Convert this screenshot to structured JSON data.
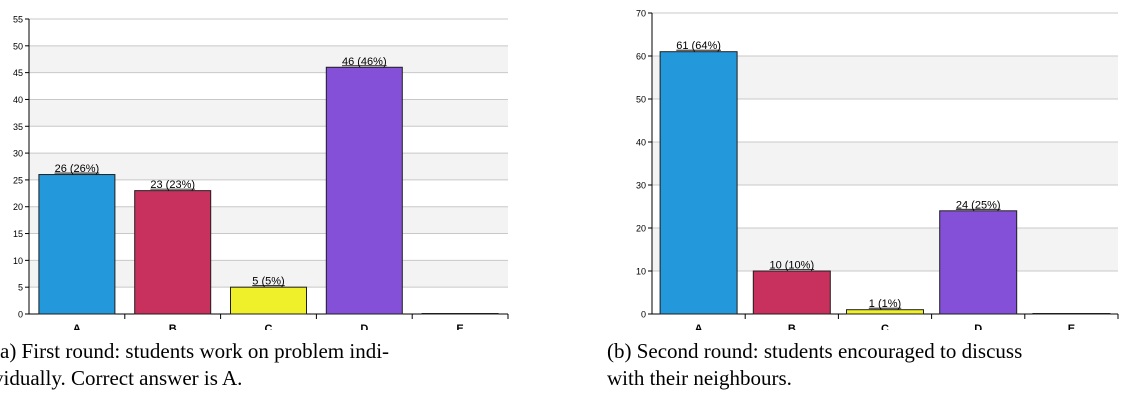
{
  "colors": {
    "A": "#2398da",
    "B": "#c8305e",
    "C": "#efef2a",
    "D": "#8450d8",
    "E": "#b0b0b0",
    "band": "#f3f3f3",
    "grid": "#c8c8c8"
  },
  "chart_data": [
    {
      "type": "bar",
      "title": "",
      "xlabel": "",
      "ylabel": "",
      "categories": [
        "A",
        "B",
        "C",
        "D",
        "E"
      ],
      "values": [
        26,
        23,
        5,
        46,
        0
      ],
      "data_labels": [
        "26 (26%)",
        "23 (23%)",
        "5 (5%)",
        "46 (46%)",
        ""
      ],
      "ylim": [
        0,
        55
      ],
      "yticks": [
        0,
        5,
        10,
        15,
        20,
        25,
        30,
        35,
        40,
        45,
        50,
        55
      ],
      "grid": true,
      "caption": {
        "line1": "(a) First round: students work on problem indi-",
        "line2": "vidually. Correct answer is A."
      }
    },
    {
      "type": "bar",
      "title": "",
      "xlabel": "",
      "ylabel": "",
      "categories": [
        "A",
        "B",
        "C",
        "D",
        "E"
      ],
      "values": [
        61,
        10,
        1,
        24,
        0
      ],
      "data_labels": [
        "61 (64%)",
        "10 (10%)",
        "1 (1%)",
        "24 (25%)",
        ""
      ],
      "ylim": [
        0,
        70
      ],
      "yticks": [
        0,
        10,
        20,
        30,
        40,
        50,
        60,
        70
      ],
      "grid": true,
      "caption": {
        "line1": "(b) Second round: students encouraged to discuss",
        "line2": "with their neighbours."
      }
    }
  ]
}
